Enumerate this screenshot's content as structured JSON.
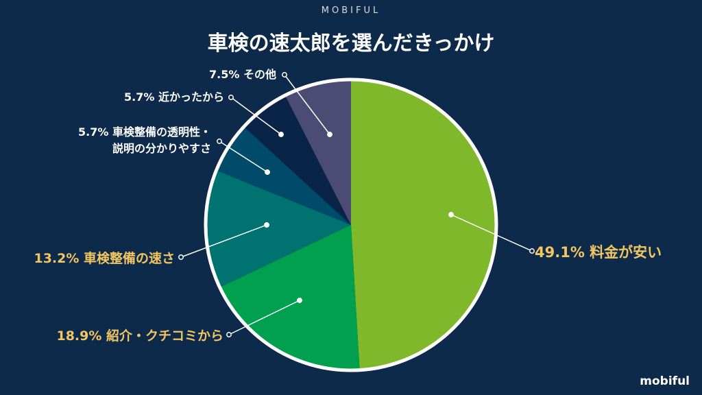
{
  "header": {
    "brand": "MOBIFUL",
    "title": "車検の速太郎を選んだきっかけ"
  },
  "footer": {
    "brand": "mobiful"
  },
  "colors": {
    "background": "#0d2a4a",
    "highlight_label": "#f2c660",
    "normal_label": "#ffffff"
  },
  "chart_data": {
    "type": "pie",
    "title": "車検の速太郎を選んだきっかけ",
    "start_angle": "12 o'clock",
    "direction": "clockwise",
    "slices": [
      {
        "label": "料金が安い",
        "value": 49.1,
        "display": "49.1%",
        "text": [
          "49.1% 料金が安い"
        ],
        "color": "#7fb92b",
        "highlight": true
      },
      {
        "label": "紹介・クチコミから",
        "value": 18.9,
        "display": "18.9%",
        "text": [
          "18.9% 紹介・クチコミから"
        ],
        "color": "#00a04e",
        "highlight": true
      },
      {
        "label": "車検整備の速さ",
        "value": 13.2,
        "display": "13.2%",
        "text": [
          "13.2% 車検整備の速さ"
        ],
        "color": "#007270",
        "highlight": true
      },
      {
        "label": "車検整備の透明性・説明の分かりやすさ",
        "value": 5.7,
        "display": "5.7%",
        "text": [
          "5.7% 車検整備の透明性・",
          "説明の分かりやすさ"
        ],
        "color": "#004b6a",
        "highlight": false
      },
      {
        "label": "近かったから",
        "value": 5.7,
        "display": "5.7%",
        "text": [
          "5.7% 近かったから"
        ],
        "color": "#0a2448",
        "highlight": false
      },
      {
        "label": "その他",
        "value": 7.5,
        "display": "7.5%",
        "text": [
          "7.5% その他"
        ],
        "color": "#4b4b74",
        "highlight": false
      }
    ]
  }
}
